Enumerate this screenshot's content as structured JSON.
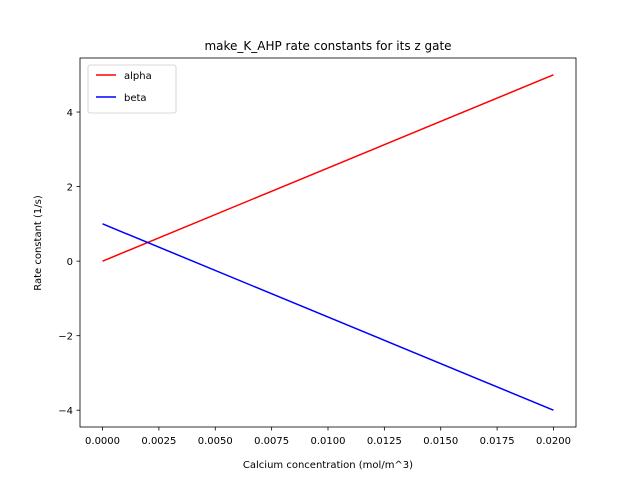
{
  "chart_data": {
    "type": "line",
    "title": "make_K_AHP rate constants for its z gate",
    "xlabel": "Calcium concentration (mol/m^3)",
    "ylabel": "Rate constant (1/s)",
    "xlim": [
      -0.001,
      0.021
    ],
    "ylim": [
      -4.45,
      5.45
    ],
    "xticks": [
      0.0,
      0.0025,
      0.005,
      0.0075,
      0.01,
      0.0125,
      0.015,
      0.0175,
      0.02
    ],
    "xtick_labels": [
      "0.0000",
      "0.0025",
      "0.0050",
      "0.0075",
      "0.0100",
      "0.0125",
      "0.0150",
      "0.0175",
      "0.0200"
    ],
    "yticks": [
      -4,
      -2,
      0,
      2,
      4
    ],
    "ytick_labels": [
      "−4",
      "−2",
      "0",
      "2",
      "4"
    ],
    "grid": false,
    "legend_position": "upper-left",
    "series": [
      {
        "name": "alpha",
        "color": "#ff0000",
        "x": [
          0.0,
          0.02
        ],
        "y": [
          0.0,
          5.0
        ]
      },
      {
        "name": "beta",
        "color": "#0000ff",
        "x": [
          0.0,
          0.02
        ],
        "y": [
          1.0,
          -4.0
        ]
      }
    ]
  }
}
